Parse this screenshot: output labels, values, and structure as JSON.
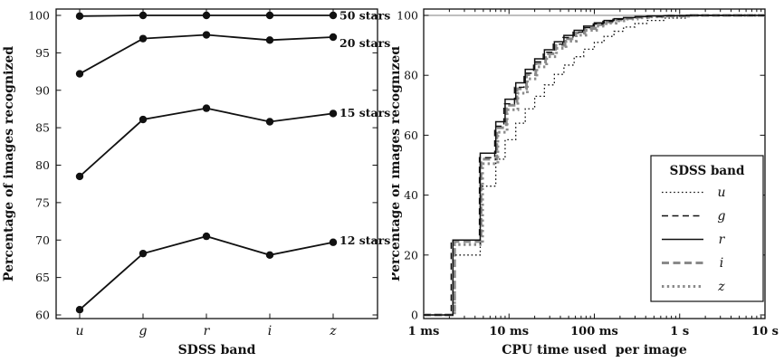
{
  "figure": {
    "background": "#ffffff",
    "ink_color": "#111111",
    "gray_color": "#8a8a8a",
    "reference_line_color": "#999999"
  },
  "chart_data": [
    {
      "id": "accuracy-vs-band",
      "type": "line",
      "title": "",
      "xlabel": "SDSS band",
      "ylabel": "Percentage of images recognized",
      "categories": [
        "u",
        "g",
        "r",
        "i",
        "z"
      ],
      "ylim": [
        60,
        100
      ],
      "yticks": [
        60,
        65,
        70,
        75,
        80,
        85,
        90,
        95,
        100
      ],
      "marker": "filled-circle",
      "series": [
        {
          "name": "50 stars",
          "values": [
            99.9,
            100,
            100,
            100,
            100
          ],
          "label_anchor": 100
        },
        {
          "name": "20 stars",
          "values": [
            92.2,
            96.9,
            97.4,
            96.7,
            97.1
          ],
          "label_anchor": 96.3
        },
        {
          "name": "15 stars",
          "values": [
            78.5,
            86.1,
            87.6,
            85.8,
            86.9
          ],
          "label_anchor": 87.0
        },
        {
          "name": "12 stars",
          "values": [
            60.7,
            68.2,
            70.5,
            68.0,
            69.7
          ],
          "label_anchor": 70.0
        }
      ]
    },
    {
      "id": "cpu-time-cdf",
      "type": "line",
      "title": "",
      "xlabel": "CPU time used  per image",
      "ylabel": "Percentage of images recognized",
      "xscale": "log",
      "xlim_ms": [
        1,
        10000
      ],
      "xticks": [
        {
          "ms": 1,
          "label": "1 ms"
        },
        {
          "ms": 10,
          "label": "10 ms"
        },
        {
          "ms": 100,
          "label": "100 ms"
        },
        {
          "ms": 1000,
          "label": "1 s"
        },
        {
          "ms": 10000,
          "label": "10 s"
        }
      ],
      "ylim": [
        0,
        100
      ],
      "yticks": [
        0,
        20,
        40,
        60,
        80,
        100
      ],
      "reference_line_y": 100,
      "legend": {
        "title": "SDSS band",
        "entries": [
          "u",
          "g",
          "r",
          "i",
          "z"
        ]
      },
      "draw_order": [
        "i",
        "z",
        "g",
        "r",
        "u"
      ],
      "series": [
        {
          "name": "u",
          "style": "dotted-thin",
          "color": "#111111",
          "x_ms": [
            2.2,
            4.6,
            7,
            9,
            12,
            15.5,
            20,
            26,
            34,
            44,
            58,
            75,
            100,
            130,
            170,
            220,
            300,
            420,
            650,
            1200
          ],
          "levels": [
            20,
            43,
            52,
            58.5,
            64,
            68.8,
            73,
            76.8,
            80.3,
            83.4,
            86.2,
            88.7,
            91,
            93,
            94.7,
            96.1,
            97.3,
            98.3,
            99.1,
            100
          ]
        },
        {
          "name": "g",
          "style": "dashed-thin",
          "color": "#111111",
          "x_ms": [
            2.1,
            4.5,
            6.8,
            8.7,
            11.6,
            15,
            19.4,
            25.2,
            33,
            42.7,
            56.3,
            72.8,
            97,
            126,
            165,
            213,
            291,
            407,
            631,
            1164
          ],
          "levels": [
            25,
            52.5,
            63,
            70.5,
            76,
            80.7,
            84.5,
            87.7,
            90.4,
            92.6,
            94.4,
            95.9,
            97.1,
            98,
            98.7,
            99.2,
            99.5,
            99.7,
            99.9,
            100
          ]
        },
        {
          "name": "r",
          "style": "solid",
          "color": "#111111",
          "x_ms": [
            2.2,
            4.6,
            7,
            9,
            12,
            15.5,
            20,
            26,
            34,
            44,
            58,
            75,
            100,
            130,
            170,
            220,
            300,
            420,
            650,
            1200
          ],
          "levels": [
            25,
            54,
            64.5,
            72,
            77.5,
            82,
            85.5,
            88.5,
            91.2,
            93.3,
            95,
            96.4,
            97.5,
            98.3,
            98.9,
            99.3,
            99.6,
            99.8,
            99.9,
            100
          ]
        },
        {
          "name": "i",
          "style": "dashed-thick",
          "color": "#8a8a8a",
          "x_ms": [
            2.3,
            4.7,
            7.2,
            9.3,
            12.4,
            16,
            20.6,
            26.8,
            35,
            45.3,
            59.7,
            77.3,
            103,
            134,
            175,
            227,
            309,
            433,
            670,
            1236
          ],
          "levels": [
            24.5,
            52,
            62.5,
            70,
            75.5,
            80.2,
            84,
            87.2,
            90,
            92.2,
            94.1,
            95.6,
            96.9,
            97.8,
            98.5,
            99,
            99.4,
            99.65,
            99.85,
            100
          ]
        },
        {
          "name": "z",
          "style": "dotted-thick",
          "color": "#8a8a8a",
          "x_ms": [
            2.3,
            4.9,
            7.4,
            9.5,
            12.7,
            16.4,
            21.2,
            27.6,
            36,
            46.6,
            61.5,
            79.5,
            106,
            138,
            180,
            233,
            318,
            445,
            689,
            1272
          ],
          "levels": [
            23.5,
            50.5,
            61,
            68.5,
            74,
            78.8,
            82.8,
            86.2,
            89,
            91.4,
            93.4,
            95,
            96.4,
            97.4,
            98.2,
            98.8,
            99.2,
            99.5,
            99.75,
            100
          ]
        }
      ]
    }
  ]
}
